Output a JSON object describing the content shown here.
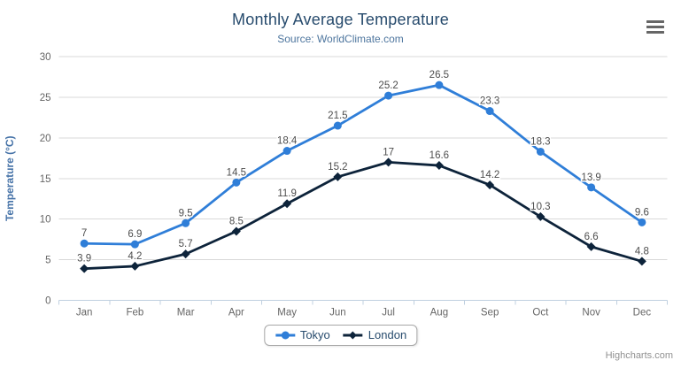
{
  "chart_data": {
    "type": "line",
    "title": "Monthly Average Temperature",
    "subtitle": "Source: WorldClimate.com",
    "categories": [
      "Jan",
      "Feb",
      "Mar",
      "Apr",
      "May",
      "Jun",
      "Jul",
      "Aug",
      "Sep",
      "Oct",
      "Nov",
      "Dec"
    ],
    "series": [
      {
        "name": "Tokyo",
        "color": "#2f7ed8",
        "marker": "circle",
        "values": [
          7.0,
          6.9,
          9.5,
          14.5,
          18.4,
          21.5,
          25.2,
          26.5,
          23.3,
          18.3,
          13.9,
          9.6
        ]
      },
      {
        "name": "London",
        "color": "#0d233a",
        "marker": "diamond",
        "values": [
          3.9,
          4.2,
          5.7,
          8.5,
          11.9,
          15.2,
          17.0,
          16.6,
          14.2,
          10.3,
          6.6,
          4.8
        ]
      }
    ],
    "xlabel": "",
    "ylabel": "Temperature (°C)",
    "ylim": [
      0,
      30
    ],
    "ytick_interval": 5,
    "grid": true,
    "data_labels": true,
    "legend_position": "bottom-center"
  },
  "credits": {
    "text": "Highcharts.com"
  },
  "icons": {
    "context_menu": "hamburger"
  },
  "styles": {
    "background": "#ffffff",
    "title_color": "#274b6d",
    "subtitle_color": "#4d759e",
    "axis_title_color": "#4572a7",
    "axis_label_color": "#666666",
    "data_label_color": "#4d4d4d",
    "grid_color": "#d8d8d8",
    "axis_line_color": "#c0d0e0",
    "legend_text_color": "#274b6d",
    "legend_border_color": "#a8a8a8",
    "credits_color": "#909090",
    "menu_icon_color": "#666666"
  }
}
